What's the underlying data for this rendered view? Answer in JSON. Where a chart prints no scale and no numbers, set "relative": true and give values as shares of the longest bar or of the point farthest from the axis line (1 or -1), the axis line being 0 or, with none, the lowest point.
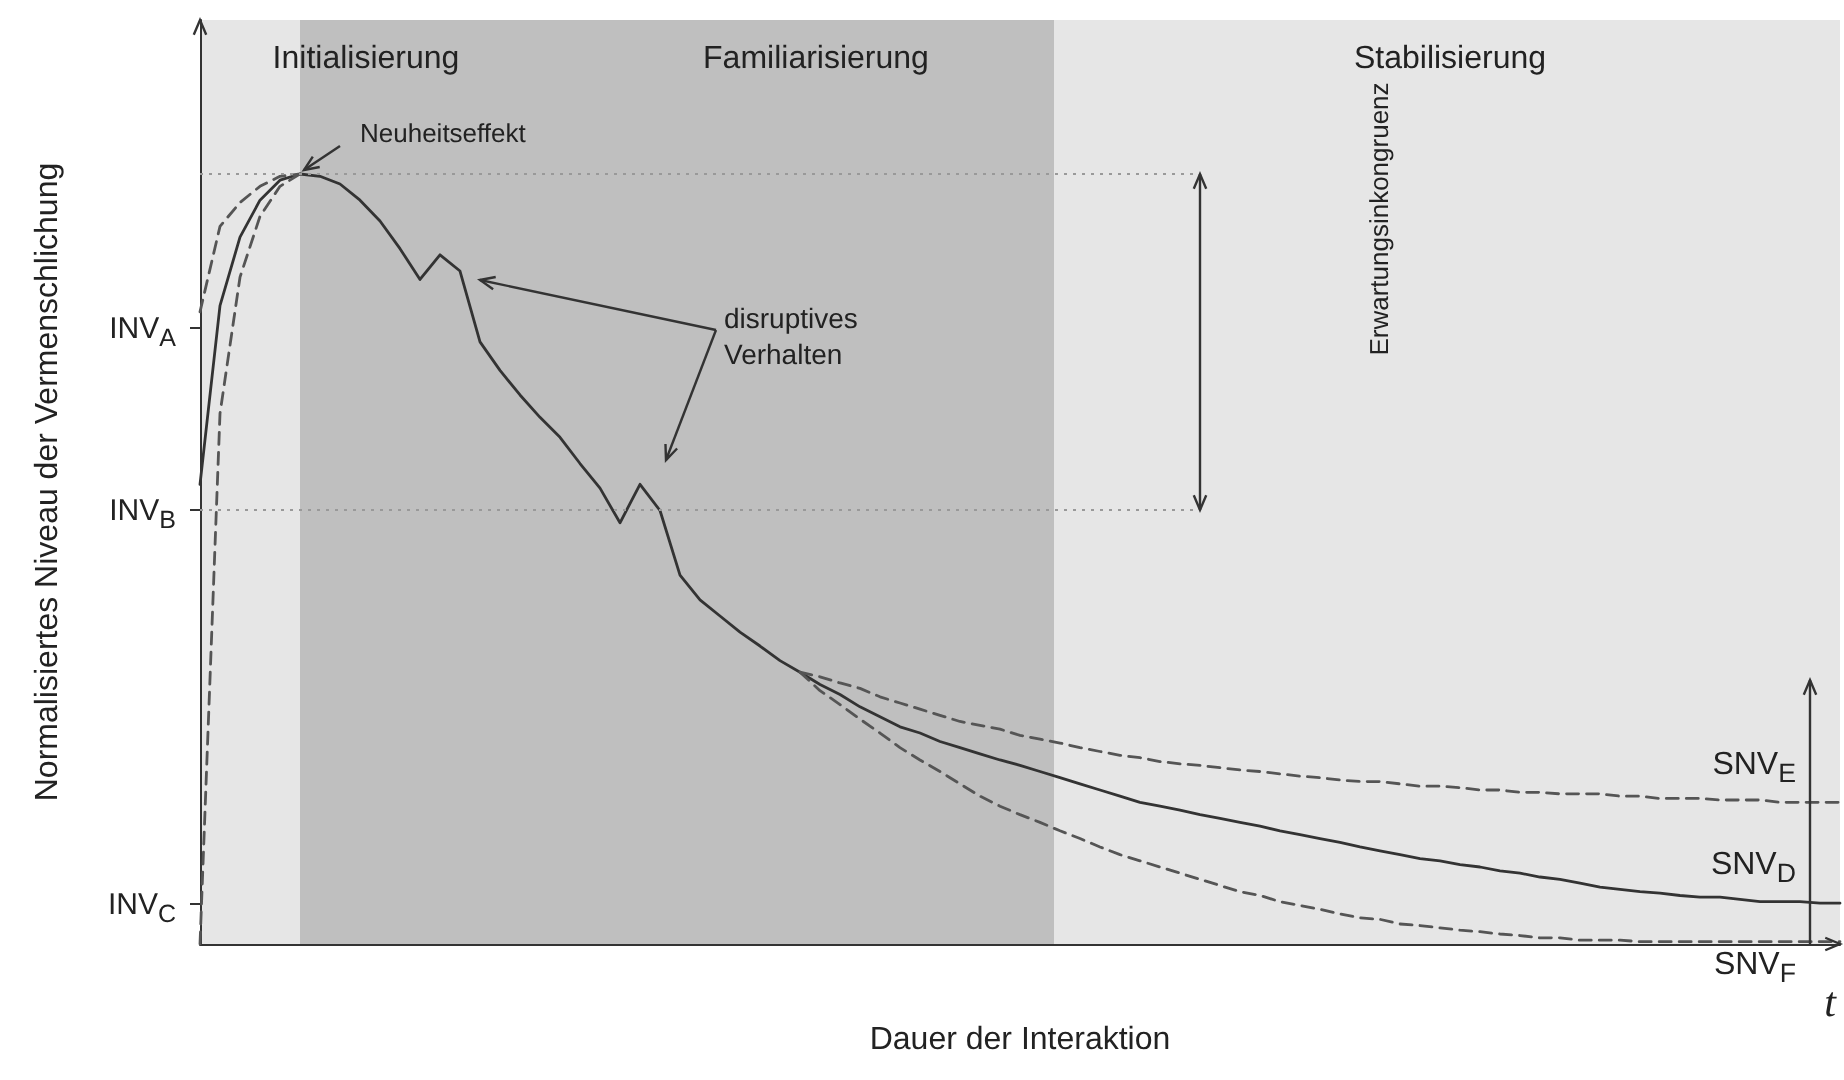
{
  "chart_data": {
    "type": "line",
    "relative": true,
    "xlabel": "Dauer der Interaktion",
    "ylabel": "Normalisiertes Niveau der Vermenschlichung",
    "categories": [
      null,
      null,
      null,
      null,
      null,
      null,
      null,
      null,
      null,
      null,
      null,
      null,
      null,
      null,
      null,
      null,
      null,
      null,
      null,
      null,
      null,
      null,
      null,
      null,
      null,
      null,
      null,
      null,
      null,
      null,
      null,
      null,
      null,
      null,
      null,
      null,
      null,
      null,
      null,
      null,
      null,
      null,
      null,
      null,
      null,
      null,
      null,
      null,
      null,
      null,
      null,
      null,
      null,
      null,
      null,
      null,
      null,
      null,
      null,
      null,
      null,
      null,
      null,
      null,
      null,
      null,
      null,
      null,
      null,
      null,
      null,
      null,
      null,
      null,
      null,
      null,
      null,
      null,
      null,
      null,
      null,
      null,
      null
    ],
    "marker": "none",
    "annotations": [
      "INV$_{A}$",
      "INV$_{B}$",
      "INV$_{C}$",
      "Initialisierung",
      "Familiarisierung",
      "Stabilisierung",
      "Neuheitseffekt",
      "disruptives Verhalten",
      "Erwartungsinkongruenz",
      "t"
    ],
    "series": [
      {
        "name": "SNV$_{D}$",
        "color": "#333333",
        "line_style": "solid",
        "values": [
          0.597,
          0.829,
          0.918,
          0.966,
          0.992,
          1,
          0.997,
          0.987,
          0.966,
          0.939,
          0.903,
          0.863,
          0.895,
          0.874,
          0.782,
          0.745,
          0.713,
          0.684,
          0.658,
          0.624,
          0.592,
          0.547,
          0.597,
          0.563,
          0.479,
          0.447,
          0.426,
          0.405,
          0.387,
          0.368,
          0.353,
          0.337,
          0.324,
          0.308,
          0.295,
          0.282,
          0.274,
          0.263,
          0.255,
          0.247,
          0.239,
          0.232,
          0.224,
          0.216,
          0.208,
          0.2,
          0.192,
          0.184,
          0.179,
          0.174,
          0.168,
          0.163,
          0.158,
          0.153,
          0.147,
          0.142,
          0.137,
          0.132,
          0.126,
          0.121,
          0.116,
          0.111,
          0.108,
          0.103,
          0.1,
          0.095,
          0.092,
          0.087,
          0.084,
          0.079,
          0.074,
          0.071,
          0.068,
          0.066,
          0.063,
          0.061,
          0.061,
          0.058,
          0.055,
          0.055,
          0.055,
          0.053,
          0.053
        ]
      },
      {
        "name": "SNV$_{E}$",
        "color": "#555555",
        "line_style": "dashed",
        "values": [
          null,
          null,
          null,
          null,
          null,
          null,
          null,
          null,
          null,
          null,
          null,
          null,
          null,
          null,
          null,
          null,
          null,
          null,
          null,
          null,
          null,
          null,
          null,
          null,
          null,
          null,
          null,
          null,
          null,
          null,
          0.353,
          0.347,
          0.339,
          0.332,
          0.321,
          0.313,
          0.305,
          0.297,
          0.289,
          0.284,
          0.279,
          0.271,
          0.266,
          0.261,
          0.255,
          0.25,
          0.245,
          0.242,
          0.237,
          0.234,
          0.232,
          0.229,
          0.226,
          0.224,
          0.221,
          0.218,
          0.216,
          0.213,
          0.211,
          0.211,
          0.208,
          0.205,
          0.205,
          0.203,
          0.2,
          0.2,
          0.197,
          0.197,
          0.195,
          0.195,
          0.195,
          0.192,
          0.192,
          0.189,
          0.189,
          0.189,
          0.187,
          0.187,
          0.187,
          0.184,
          0.184,
          0.184,
          0.184
        ]
      },
      {
        "name": "SNV$_{F}$",
        "color": "#555555",
        "line_style": "dashed",
        "values": [
          null,
          null,
          null,
          null,
          null,
          null,
          null,
          null,
          null,
          null,
          null,
          null,
          null,
          null,
          null,
          null,
          null,
          null,
          null,
          null,
          null,
          null,
          null,
          null,
          null,
          null,
          null,
          null,
          null,
          null,
          0.353,
          0.329,
          0.311,
          0.292,
          0.274,
          0.255,
          0.239,
          0.224,
          0.208,
          0.192,
          0.179,
          0.168,
          0.158,
          0.147,
          0.137,
          0.126,
          0.116,
          0.108,
          0.1,
          0.092,
          0.084,
          0.076,
          0.068,
          0.063,
          0.055,
          0.05,
          0.045,
          0.039,
          0.034,
          0.032,
          0.026,
          0.024,
          0.021,
          0.018,
          0.016,
          0.013,
          0.011,
          0.008,
          0.008,
          0.005,
          0.005,
          0.005,
          0.003,
          0.003,
          0.003,
          0.003,
          0.003,
          0.003,
          0.003,
          0.003,
          0.003,
          0.003,
          0.003
        ]
      },
      {
        "color": "#555555",
        "line_style": "dashed",
        "values": [
          0.821,
          0.932,
          0.963,
          0.984,
          0.997,
          1,
          null,
          null,
          null,
          null,
          null,
          null,
          null,
          null,
          null,
          null,
          null,
          null,
          null,
          null,
          null,
          null,
          null,
          null,
          null,
          null,
          null,
          null,
          null,
          null,
          null,
          null,
          null,
          null,
          null,
          null,
          null,
          null,
          null,
          null,
          null,
          null,
          null,
          null,
          null,
          null,
          null,
          null,
          null,
          null,
          null,
          null,
          null,
          null,
          null,
          null,
          null,
          null,
          null,
          null,
          null,
          null,
          null,
          null,
          null,
          null,
          null,
          null,
          null,
          null,
          null,
          null,
          null,
          null,
          null,
          null,
          null,
          null,
          null,
          null,
          null,
          null,
          null
        ]
      },
      {
        "color": "#555555",
        "line_style": "dashed",
        "values": [
          0,
          0.689,
          0.866,
          0.945,
          0.984,
          1,
          null,
          null,
          null,
          null,
          null,
          null,
          null,
          null,
          null,
          null,
          null,
          null,
          null,
          null,
          null,
          null,
          null,
          null,
          null,
          null,
          null,
          null,
          null,
          null,
          null,
          null,
          null,
          null,
          null,
          null,
          null,
          null,
          null,
          null,
          null,
          null,
          null,
          null,
          null,
          null,
          null,
          null,
          null,
          null,
          null,
          null,
          null,
          null,
          null,
          null,
          null,
          null,
          null,
          null,
          null,
          null,
          null,
          null,
          null,
          null,
          null,
          null,
          null,
          null,
          null,
          null,
          null,
          null,
          null,
          null,
          null,
          null,
          null,
          null,
          null,
          null,
          null
        ]
      }
    ]
  }
}
